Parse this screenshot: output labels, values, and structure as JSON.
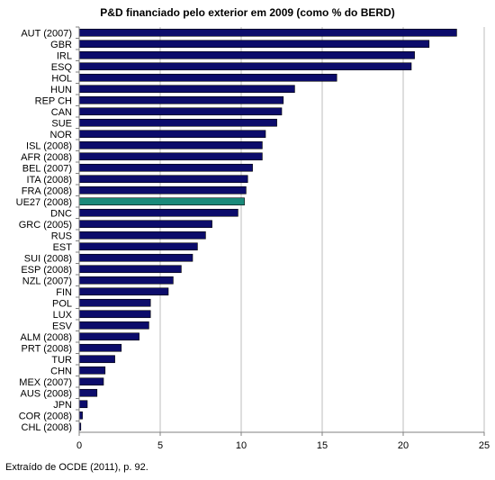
{
  "chart_data": {
    "type": "bar",
    "orientation": "horizontal",
    "title": "P&D financiado pelo exterior em 2009 (como % do BERD)",
    "xlabel": "",
    "ylabel": "",
    "xlim": [
      0,
      25
    ],
    "xticks": [
      0,
      5,
      10,
      15,
      20,
      25
    ],
    "grid": true,
    "categories": [
      "AUT (2007)",
      "GBR",
      "IRL",
      "ESQ",
      "HOL",
      "HUN",
      "REP CH",
      "CAN",
      "SUE",
      "NOR",
      "ISL (2008)",
      "AFR (2008)",
      "BEL (2007)",
      "ITA (2008)",
      "FRA (2008)",
      "UE27 (2008)",
      "DNC",
      "GRC (2005)",
      "RUS",
      "EST",
      "SUI (2008)",
      "ESP (2008)",
      "NZL (2007)",
      "FIN",
      "POL",
      "LUX",
      "ESV",
      "ALM (2008)",
      "PRT (2008)",
      "TUR",
      "CHN",
      "MEX (2007)",
      "AUS (2008)",
      "JPN",
      "COR (2008)",
      "CHL (2008)"
    ],
    "values": [
      23.3,
      21.6,
      20.7,
      20.5,
      15.9,
      13.3,
      12.6,
      12.5,
      12.2,
      11.5,
      11.3,
      11.3,
      10.7,
      10.4,
      10.3,
      10.2,
      9.8,
      8.2,
      7.8,
      7.3,
      7.0,
      6.3,
      5.8,
      5.5,
      4.4,
      4.4,
      4.3,
      3.7,
      2.6,
      2.2,
      1.6,
      1.5,
      1.1,
      0.5,
      0.2,
      0.1
    ],
    "highlight_category": "UE27 (2008)",
    "colors": {
      "bar": "#0c0c6b",
      "highlight": "#1a8a7a",
      "grid": "#bdbdbd",
      "axis": "#808080"
    }
  },
  "source_note": "Extraído de OCDE (2011), p. 92."
}
